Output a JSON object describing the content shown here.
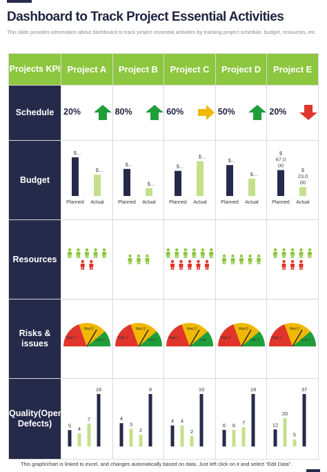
{
  "title": "Dashboard to Track Project Essential Activities",
  "subtitle": "This slide provides information about dashboard to track project essential activities by tracking project schedule, budget, resources, etc.",
  "header": {
    "kpi_label": "Projects KPI",
    "projects": [
      "Project A",
      "Project B",
      "Project C",
      "Project D",
      "Project E"
    ]
  },
  "row_labels": {
    "schedule": "Schedule",
    "budget": "Budget",
    "resources": "Resources",
    "risks": "Risks & issues",
    "quality": "Quality(Open Defects)"
  },
  "schedule": [
    {
      "pct": "20%",
      "arrow": "up-arrow-icon",
      "color": "#1f9e3a"
    },
    {
      "pct": "80%",
      "arrow": "up-arrow-icon",
      "color": "#1f9e3a"
    },
    {
      "pct": "60%",
      "arrow": "right-arrow-icon",
      "color": "#f0b800"
    },
    {
      "pct": "50%",
      "arrow": "up-arrow-icon",
      "color": "#1f9e3a"
    },
    {
      "pct": "20%",
      "arrow": "down-arrow-icon",
      "color": "#e0352b"
    }
  ],
  "budget": {
    "categories": [
      "Planned",
      "Actual"
    ],
    "projects": [
      {
        "planned": 100,
        "actual": 55,
        "planned_label": "$...",
        "actual_label": "$..."
      },
      {
        "planned": 70,
        "actual": 20,
        "planned_label": "$...",
        "actual_label": "$..."
      },
      {
        "planned": 65,
        "actual": 90,
        "planned_label": "$...",
        "actual_label": "$..."
      },
      {
        "planned": 80,
        "actual": 45,
        "planned_label": "$...",
        "actual_label": "$..."
      },
      {
        "planned": 67,
        "actual": 23,
        "planned_label": "$ 67,0 00",
        "actual_label": "$ 23,0 00"
      }
    ],
    "colors": {
      "planned": "#262a4a",
      "actual": "#c5e08a"
    }
  },
  "resources": [
    {
      "green": 5,
      "red": 2
    },
    {
      "green": 3,
      "red": 0
    },
    {
      "green": 6,
      "red": 5
    },
    {
      "green": 5,
      "red": 0
    },
    {
      "green": 5,
      "red": 3
    }
  ],
  "resource_colors": {
    "green": "#8dc63f",
    "red": "#e0352b"
  },
  "risks": {
    "labels": [
      "High 0",
      "Med 2",
      "Low 1"
    ],
    "projects": [
      {
        "labels": [
          "High 0",
          "Med 2",
          "Low 1"
        ]
      },
      {
        "labels": [
          "High 1",
          "Med 2",
          "Low 1"
        ]
      },
      {
        "labels": [
          "High 1",
          "Med 2",
          "Low"
        ]
      },
      {
        "labels": [
          "High 3",
          "Med 0",
          "Low 1"
        ]
      },
      {
        "labels": [
          "High 1",
          "Med 2",
          "Low 1"
        ]
      }
    ],
    "colors": {
      "high": "#e0352b",
      "med": "#f0b800",
      "low": "#1f9e3a"
    }
  },
  "chart_data": {
    "type": "bar",
    "title": "",
    "categories": [
      "Project A",
      "Project B",
      "Project C",
      "Project D",
      "Project E"
    ],
    "series": [
      {
        "values": [
          5,
          4,
          4,
          6,
          12
        ]
      },
      {
        "values": [
          4,
          3,
          4,
          6,
          20
        ]
      },
      {
        "values": [
          7,
          2,
          2,
          7,
          5
        ]
      },
      {
        "values": [
          16,
          9,
          10,
          19,
          37
        ]
      }
    ],
    "colors": [
      "#262a4a",
      "#c5e08a",
      "#c5e08a",
      "#262a4a"
    ]
  },
  "footer": "This graph/chart is linked to excel, and changes automatically based on data. Just left click on it and select “Edit Data”."
}
